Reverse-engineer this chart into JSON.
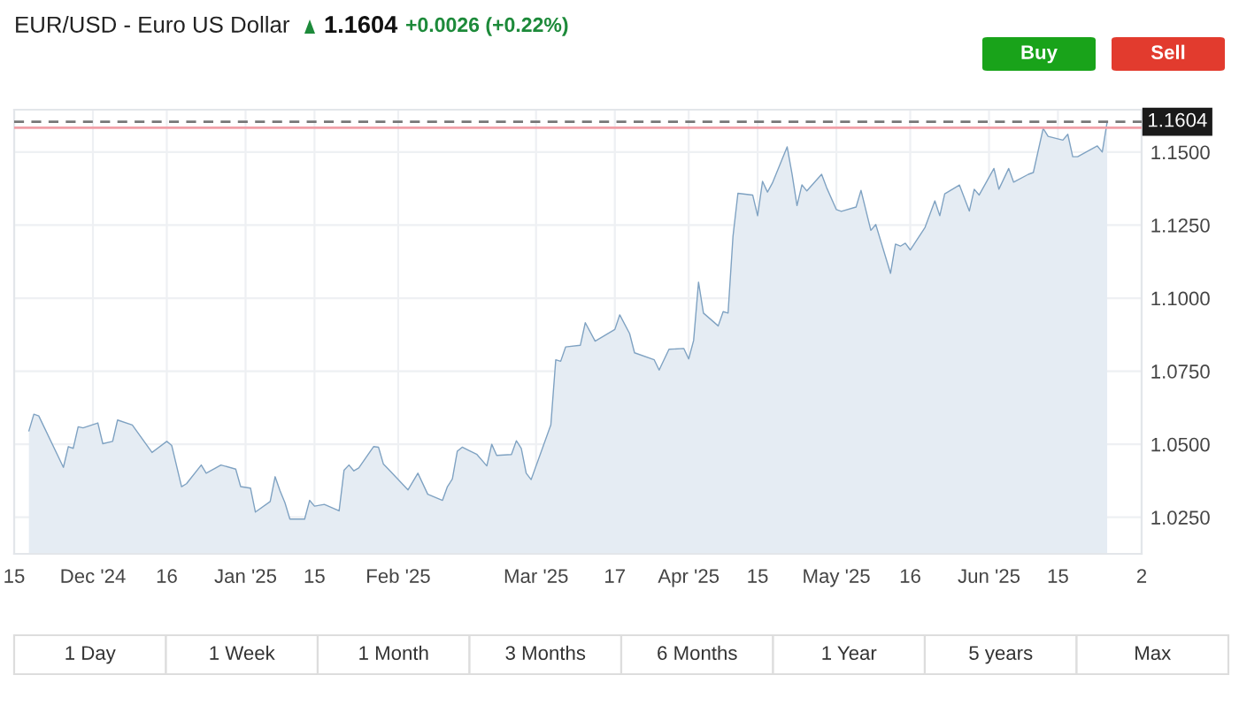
{
  "chart_data": {
    "type": "area",
    "title": "EUR/USD - Euro US Dollar",
    "x": [
      "2024-11-18",
      "2024-11-19",
      "2024-11-20",
      "2024-11-25",
      "2024-11-26",
      "2024-11-27",
      "2024-11-28",
      "2024-11-29",
      "2024-12-02",
      "2024-12-03",
      "2024-12-05",
      "2024-12-06",
      "2024-12-09",
      "2024-12-13",
      "2024-12-16",
      "2024-12-17",
      "2024-12-19",
      "2024-12-20",
      "2024-12-23",
      "2024-12-24",
      "2024-12-27",
      "2024-12-30",
      "2024-12-31",
      "2025-01-02",
      "2025-01-03",
      "2025-01-06",
      "2025-01-07",
      "2025-01-08",
      "2025-01-09",
      "2025-01-10",
      "2025-01-13",
      "2025-01-14",
      "2025-01-15",
      "2025-01-17",
      "2025-01-20",
      "2025-01-21",
      "2025-01-22",
      "2025-01-23",
      "2025-01-24",
      "2025-01-27",
      "2025-01-28",
      "2025-01-29",
      "2025-01-30",
      "2025-02-03",
      "2025-02-05",
      "2025-02-07",
      "2025-02-10",
      "2025-02-11",
      "2025-02-12",
      "2025-02-13",
      "2025-02-14",
      "2025-02-17",
      "2025-02-19",
      "2025-02-20",
      "2025-02-21",
      "2025-02-24",
      "2025-02-25",
      "2025-02-26",
      "2025-02-27",
      "2025-02-28",
      "2025-03-04",
      "2025-03-05",
      "2025-03-06",
      "2025-03-07",
      "2025-03-10",
      "2025-03-11",
      "2025-03-13",
      "2025-03-17",
      "2025-03-18",
      "2025-03-20",
      "2025-03-21",
      "2025-03-25",
      "2025-03-26",
      "2025-03-28",
      "2025-03-31",
      "2025-04-01",
      "2025-04-02",
      "2025-04-03",
      "2025-04-04",
      "2025-04-07",
      "2025-04-08",
      "2025-04-09",
      "2025-04-10",
      "2025-04-11",
      "2025-04-14",
      "2025-04-15",
      "2025-04-16",
      "2025-04-17",
      "2025-04-18",
      "2025-04-21",
      "2025-04-22",
      "2025-04-23",
      "2025-04-24",
      "2025-04-25",
      "2025-04-28",
      "2025-04-29",
      "2025-05-01",
      "2025-05-02",
      "2025-05-05",
      "2025-05-06",
      "2025-05-08",
      "2025-05-09",
      "2025-05-12",
      "2025-05-13",
      "2025-05-14",
      "2025-05-15",
      "2025-05-16",
      "2025-05-19",
      "2025-05-21",
      "2025-05-22",
      "2025-05-23",
      "2025-05-26",
      "2025-05-28",
      "2025-05-29",
      "2025-05-30",
      "2025-06-02",
      "2025-06-03",
      "2025-06-05",
      "2025-06-06",
      "2025-06-09",
      "2025-06-10",
      "2025-06-12",
      "2025-06-13",
      "2025-06-16",
      "2025-06-17",
      "2025-06-18",
      "2025-06-19",
      "2025-06-23",
      "2025-06-24",
      "2025-06-25"
    ],
    "series": [
      {
        "color": "#7fa2c2",
        "values": [
          1.0546,
          1.0603,
          1.0597,
          1.0421,
          1.0492,
          1.0486,
          1.056,
          1.0556,
          1.0573,
          1.0502,
          1.051,
          1.0583,
          1.0566,
          1.0472,
          1.051,
          1.0496,
          1.0355,
          1.0365,
          1.0429,
          1.0401,
          1.0429,
          1.0415,
          1.0355,
          1.035,
          1.0268,
          1.0304,
          1.0389,
          1.0341,
          1.03,
          1.0244,
          1.0244,
          1.0308,
          1.0288,
          1.0294,
          1.0272,
          1.0411,
          1.0429,
          1.0409,
          1.0419,
          1.0492,
          1.049,
          1.0432,
          1.0415,
          1.0344,
          1.0401,
          1.0329,
          1.0308,
          1.0355,
          1.0381,
          1.0476,
          1.049,
          1.0465,
          1.0426,
          1.05,
          1.0462,
          1.0465,
          1.0512,
          1.0486,
          1.0401,
          1.0379,
          1.0566,
          1.0789,
          1.0784,
          1.0833,
          1.0839,
          1.0916,
          1.0853,
          1.0893,
          1.0943,
          1.0879,
          1.0813,
          1.0789,
          1.0754,
          1.0825,
          1.0828,
          1.0792,
          1.0855,
          1.1055,
          1.0949,
          1.0905,
          1.0954,
          1.0949,
          1.1212,
          1.1359,
          1.1353,
          1.1282,
          1.14,
          1.1363,
          1.1394,
          1.1518,
          1.1424,
          1.1317,
          1.1388,
          1.1367,
          1.1424,
          1.1379,
          1.1303,
          1.1297,
          1.1312,
          1.1369,
          1.1232,
          1.1252,
          1.1085,
          1.1185,
          1.1178,
          1.1188,
          1.1165,
          1.1242,
          1.1333,
          1.1282,
          1.1357,
          1.1387,
          1.1298,
          1.1373,
          1.1353,
          1.1444,
          1.1373,
          1.1444,
          1.1397,
          1.1424,
          1.143,
          1.1581,
          1.1554,
          1.1541,
          1.1561,
          1.1484,
          1.1484,
          1.1521,
          1.15,
          1.1604
        ]
      }
    ],
    "xlim": [
      "2024-11-15",
      "2025-07-02"
    ],
    "xticks": [
      {
        "value": "2024-11-15",
        "label": "15"
      },
      {
        "value": "2024-12-01",
        "label": "Dec '24"
      },
      {
        "value": "2024-12-16",
        "label": "16"
      },
      {
        "value": "2025-01-01",
        "label": "Jan '25"
      },
      {
        "value": "2025-01-15",
        "label": "15"
      },
      {
        "value": "2025-02-01",
        "label": "Feb '25"
      },
      {
        "value": "2025-03-01",
        "label": "Mar '25"
      },
      {
        "value": "2025-03-17",
        "label": "17"
      },
      {
        "value": "2025-04-01",
        "label": "Apr '25"
      },
      {
        "value": "2025-04-15",
        "label": "15"
      },
      {
        "value": "2025-05-01",
        "label": "May '25"
      },
      {
        "value": "2025-05-16",
        "label": "16"
      },
      {
        "value": "2025-06-01",
        "label": "Jun '25"
      },
      {
        "value": "2025-06-15",
        "label": "15"
      },
      {
        "value": "2025-07-02",
        "label": "2"
      }
    ],
    "ylim": [
      1.0125,
      1.1645
    ],
    "yticks": [
      {
        "value": 1.025,
        "label": "1.0250"
      },
      {
        "value": 1.05,
        "label": "1.0500"
      },
      {
        "value": 1.075,
        "label": "1.0750"
      },
      {
        "value": 1.1,
        "label": "1.1000"
      },
      {
        "value": 1.125,
        "label": "1.1250"
      },
      {
        "value": 1.15,
        "label": "1.1500"
      }
    ],
    "ref_lines": [
      {
        "axis": "y",
        "value": 1.1604,
        "label": "1.1604",
        "color": "#777777",
        "line_style": "dashed"
      },
      {
        "axis": "y",
        "value": 1.1583,
        "label": null,
        "color": "#f0a0a8",
        "line_style": "solid"
      }
    ],
    "grid": true,
    "legend": false,
    "marker": "none",
    "line_style": "solid",
    "annotations": [
      "1.1604",
      "+0.0026 (+0.22%)",
      "Buy",
      "Sell",
      "1 Day",
      "1 Week",
      "1 Month",
      "3 Months",
      "6 Months",
      "1 Year",
      "5 years",
      "Max"
    ]
  }
}
